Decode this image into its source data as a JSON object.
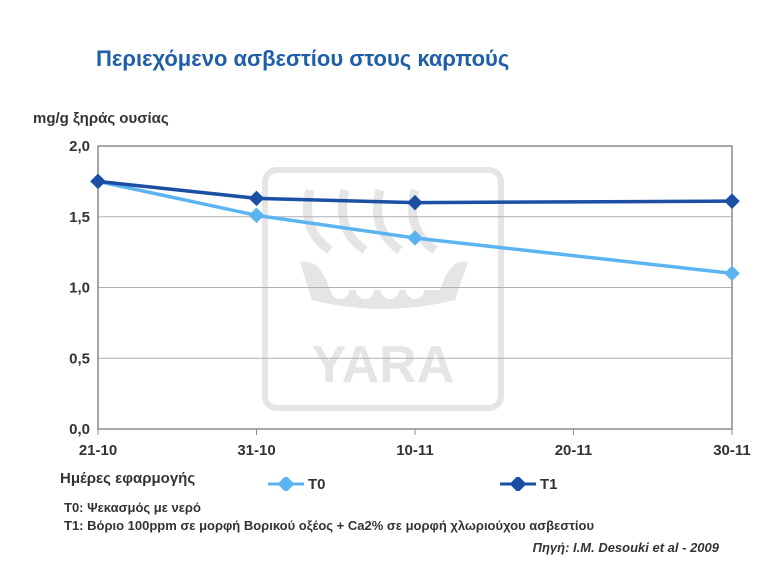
{
  "chart_data": {
    "type": "line",
    "title": "Περιεχόμενο ασβεστίου στους καρπούς",
    "ylabel": "mg/g ξηράς ουσίας",
    "xlabel": "Ημέρες εφαρμογής",
    "categories": [
      "21-10",
      "31-10",
      "10-11",
      "20-11",
      "30-11"
    ],
    "y_ticks": [
      "0,0",
      "0,5",
      "1,0",
      "1,5",
      "2,0"
    ],
    "ylim": [
      0,
      2.0
    ],
    "grid": true,
    "legend_position": "bottom",
    "series": [
      {
        "name": "T0",
        "color": "#5bb3f0",
        "points": [
          [
            0,
            1.75
          ],
          [
            1,
            1.51
          ],
          [
            2,
            1.35
          ],
          [
            4,
            1.1
          ]
        ]
      },
      {
        "name": "T1",
        "color": "#1a4fa3",
        "points": [
          [
            0,
            1.75
          ],
          [
            1,
            1.63
          ],
          [
            2,
            1.6
          ],
          [
            4,
            1.61
          ]
        ]
      }
    ]
  },
  "notes": {
    "t0": "T0: Ψεκασμός με νερό",
    "t1": "T1: Βόριο 100ppm σε μορφή Βορικού οξέος + Ca2% σε μορφή χλωριούχου ασβεστίου"
  },
  "source": "Πηγή: I.M. Desouki et al - 2009",
  "watermark": {
    "text": "YARA",
    "icon": "yara-viking-ship-logo",
    "color": "#d9d9d9"
  }
}
